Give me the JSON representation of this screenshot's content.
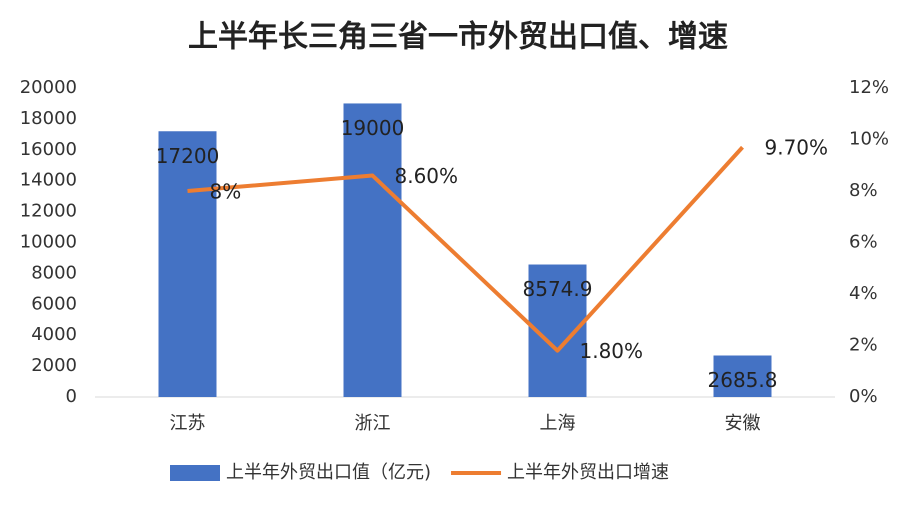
{
  "chart_data": {
    "type": "combo",
    "title": "上半年长三角三省一市外贸出口值、增速",
    "categories": [
      "江苏",
      "浙江",
      "上海",
      "安徽"
    ],
    "series": [
      {
        "name": "上半年外贸出口值（亿元)",
        "type": "bar",
        "color": "#4472c4",
        "values": [
          17200,
          19000,
          8574.9,
          2685.8
        ]
      },
      {
        "name": "上半年外贸出口增速",
        "type": "line",
        "axis": "y2",
        "color": "#ed7d31",
        "values": [
          8,
          8.6,
          1.8,
          9.7
        ],
        "value_labels": [
          "8%",
          "8.60%",
          "1.80%",
          "9.70%"
        ]
      }
    ],
    "ylim": [
      0,
      20000
    ],
    "yticks": [
      0,
      2000,
      4000,
      6000,
      8000,
      10000,
      12000,
      14000,
      16000,
      18000,
      20000
    ],
    "y2lim": [
      0,
      12
    ],
    "y2ticks": [
      {
        "value": 0,
        "label": "0%"
      },
      {
        "value": 2,
        "label": "2%"
      },
      {
        "value": 4,
        "label": "4%"
      },
      {
        "value": 6,
        "label": "6%"
      },
      {
        "value": 8,
        "label": "8%"
      },
      {
        "value": 10,
        "label": "10%"
      },
      {
        "value": 12,
        "label": "12%"
      }
    ],
    "grid": false
  }
}
